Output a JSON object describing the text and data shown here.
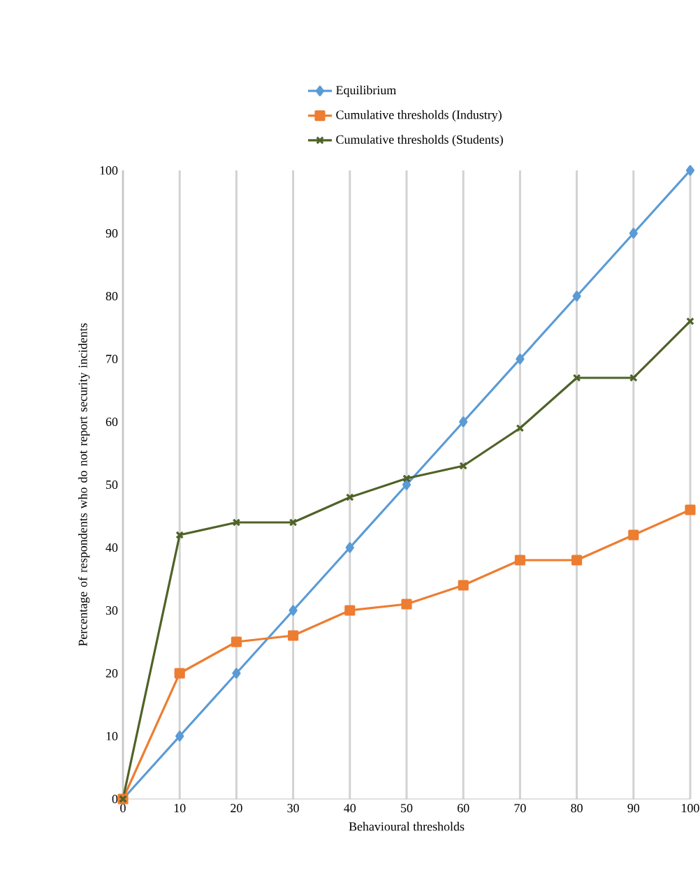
{
  "chart_data": {
    "type": "line",
    "xlabel": "Behavioural thresholds",
    "ylabel": "Percentage of respondents who do not report security incidents",
    "x": [
      0,
      10,
      20,
      30,
      40,
      50,
      60,
      70,
      80,
      90,
      100
    ],
    "series": [
      {
        "name": "Equilibrium",
        "color": "#5b9bd5",
        "marker": "diamond",
        "values": [
          0,
          10,
          20,
          30,
          40,
          50,
          60,
          70,
          80,
          90,
          100
        ]
      },
      {
        "name": "Cumulative thresholds (Industry)",
        "color": "#ed7d31",
        "marker": "square",
        "values": [
          0,
          20,
          25,
          26,
          30,
          31,
          34,
          38,
          38,
          42,
          46
        ]
      },
      {
        "name": "Cumulative thresholds (Students)",
        "color": "#4f6228",
        "marker": "cross",
        "values": [
          0,
          42,
          44,
          44,
          48,
          51,
          53,
          59,
          67,
          67,
          76
        ]
      }
    ],
    "xlim": [
      0,
      100
    ],
    "xticks": [
      0,
      10,
      20,
      30,
      40,
      50,
      60,
      70,
      80,
      90,
      100
    ],
    "ylim": [
      0,
      100
    ],
    "yticks": [
      0,
      10,
      20,
      30,
      40,
      50,
      60,
      70,
      80,
      90,
      100
    ],
    "grid": "x",
    "legend": "top"
  }
}
